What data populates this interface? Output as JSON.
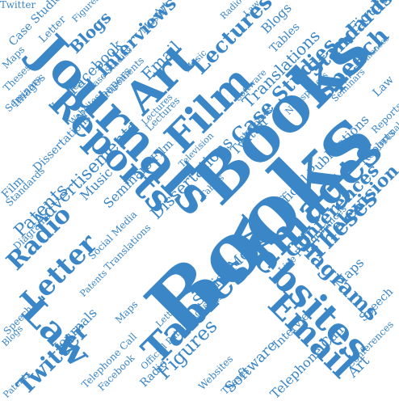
{
  "palette": {
    "word": "#3a86c6",
    "background": "#ffffff"
  },
  "words": [
    "Books",
    "Books",
    "Images",
    "Journals",
    "Reports",
    "Film",
    "Art",
    "Websites",
    "Tables",
    "Email",
    "Law",
    "Letter",
    "Radio",
    "Patents",
    "Advertisements",
    "Diagrams",
    "Case Studies",
    "Interviews",
    "Lectures",
    "Figures",
    "Speech",
    "Theses",
    "Conferences",
    "Television",
    "Twitter",
    "Music",
    "Seminars",
    "Translations",
    "Social Media",
    "Dissertations",
    "Newspapers",
    "Blogs",
    "Facebook",
    "Standards",
    "Software",
    "Official Publications",
    "Maps",
    "Live Performances",
    "Telephone Call",
    "Case Studies",
    "Twitter",
    "Figures",
    "Letter",
    "Art",
    "Radio",
    "Law",
    "Email",
    "Tables",
    "Lectures",
    "Maps",
    "Theses",
    "Seminars",
    "Images",
    "Journals",
    "Reports",
    "Speech",
    "Patents",
    "Standards",
    "Blogs",
    "Interviews",
    "Facebook",
    "Film",
    "Music",
    "Websites",
    "Diagrams",
    "Conferences",
    "Dissertations",
    "Advertisements",
    "Translations",
    "Television",
    "Newspapers",
    "Social Media",
    "Software",
    "Official Publications",
    "Live Performances",
    "Telephone Call",
    "Art",
    "Figures",
    "Speech",
    "Maps",
    "Letter",
    "Email",
    "Blogs",
    "Law",
    "Theses",
    "Tables",
    "Twitter",
    "Radio",
    "Seminars",
    "Lectures",
    "Interviews",
    "Case Studies",
    "Reports",
    "Journals",
    "Standards",
    "Patents",
    "Film",
    "Music",
    "Websites",
    "Images"
  ]
}
